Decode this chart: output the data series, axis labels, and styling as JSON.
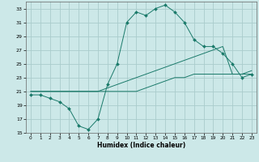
{
  "xlabel": "Humidex (Indice chaleur)",
  "background_color": "#cce8e8",
  "grid_color": "#aacccc",
  "line_color": "#1a7a6a",
  "xlim": [
    -0.5,
    23.5
  ],
  "ylim": [
    15,
    34
  ],
  "xticks": [
    0,
    1,
    2,
    3,
    4,
    5,
    6,
    7,
    8,
    9,
    10,
    11,
    12,
    13,
    14,
    15,
    16,
    17,
    18,
    19,
    20,
    21,
    22,
    23
  ],
  "yticks": [
    15,
    17,
    19,
    21,
    23,
    25,
    27,
    29,
    31,
    33
  ],
  "line1_x": [
    0,
    1,
    2,
    3,
    4,
    5,
    6,
    7,
    8,
    9,
    10,
    11,
    12,
    13,
    14,
    15,
    16,
    17,
    18,
    19,
    20,
    21,
    22,
    23
  ],
  "line1_y": [
    21,
    21,
    21,
    21,
    21,
    21,
    21,
    21,
    21,
    21,
    21,
    21,
    21.5,
    22,
    22.5,
    23,
    23,
    23.5,
    23.5,
    23.5,
    23.5,
    23.5,
    23.5,
    23.5
  ],
  "line2_x": [
    0,
    1,
    2,
    3,
    4,
    5,
    6,
    7,
    8,
    9,
    10,
    11,
    12,
    13,
    14,
    15,
    16,
    17,
    18,
    19,
    20,
    21,
    22,
    23
  ],
  "line2_y": [
    21,
    21,
    21,
    21,
    21,
    21,
    21,
    21,
    21.5,
    22,
    22.5,
    23,
    23.5,
    24,
    24.5,
    25,
    25.5,
    26,
    26.5,
    27,
    27.5,
    23.5,
    23.5,
    24
  ],
  "line3_x": [
    0,
    1,
    2,
    3,
    4,
    5,
    6,
    7,
    8,
    9,
    10,
    11,
    12,
    13,
    14,
    15,
    16,
    17,
    18,
    19,
    20,
    21,
    22,
    23
  ],
  "line3_y": [
    20.5,
    20.5,
    20,
    19.5,
    18.5,
    16,
    15.5,
    17,
    22,
    25,
    31,
    32.5,
    32,
    33,
    33.5,
    32.5,
    31,
    28.5,
    27.5,
    27.5,
    26.5,
    25,
    23,
    23.5
  ],
  "marker_x": [
    0,
    1,
    2,
    3,
    4,
    5,
    6,
    7,
    8,
    9,
    10,
    11,
    12,
    13,
    14,
    15,
    16,
    17,
    18,
    19,
    20,
    21,
    22,
    23
  ],
  "marker_y": [
    20.5,
    20.5,
    20,
    19.5,
    18.5,
    16,
    15.5,
    17,
    22,
    25,
    31,
    32.5,
    32,
    33,
    33.5,
    32.5,
    31,
    28.5,
    27.5,
    27.5,
    26.5,
    25,
    23,
    23.5
  ]
}
